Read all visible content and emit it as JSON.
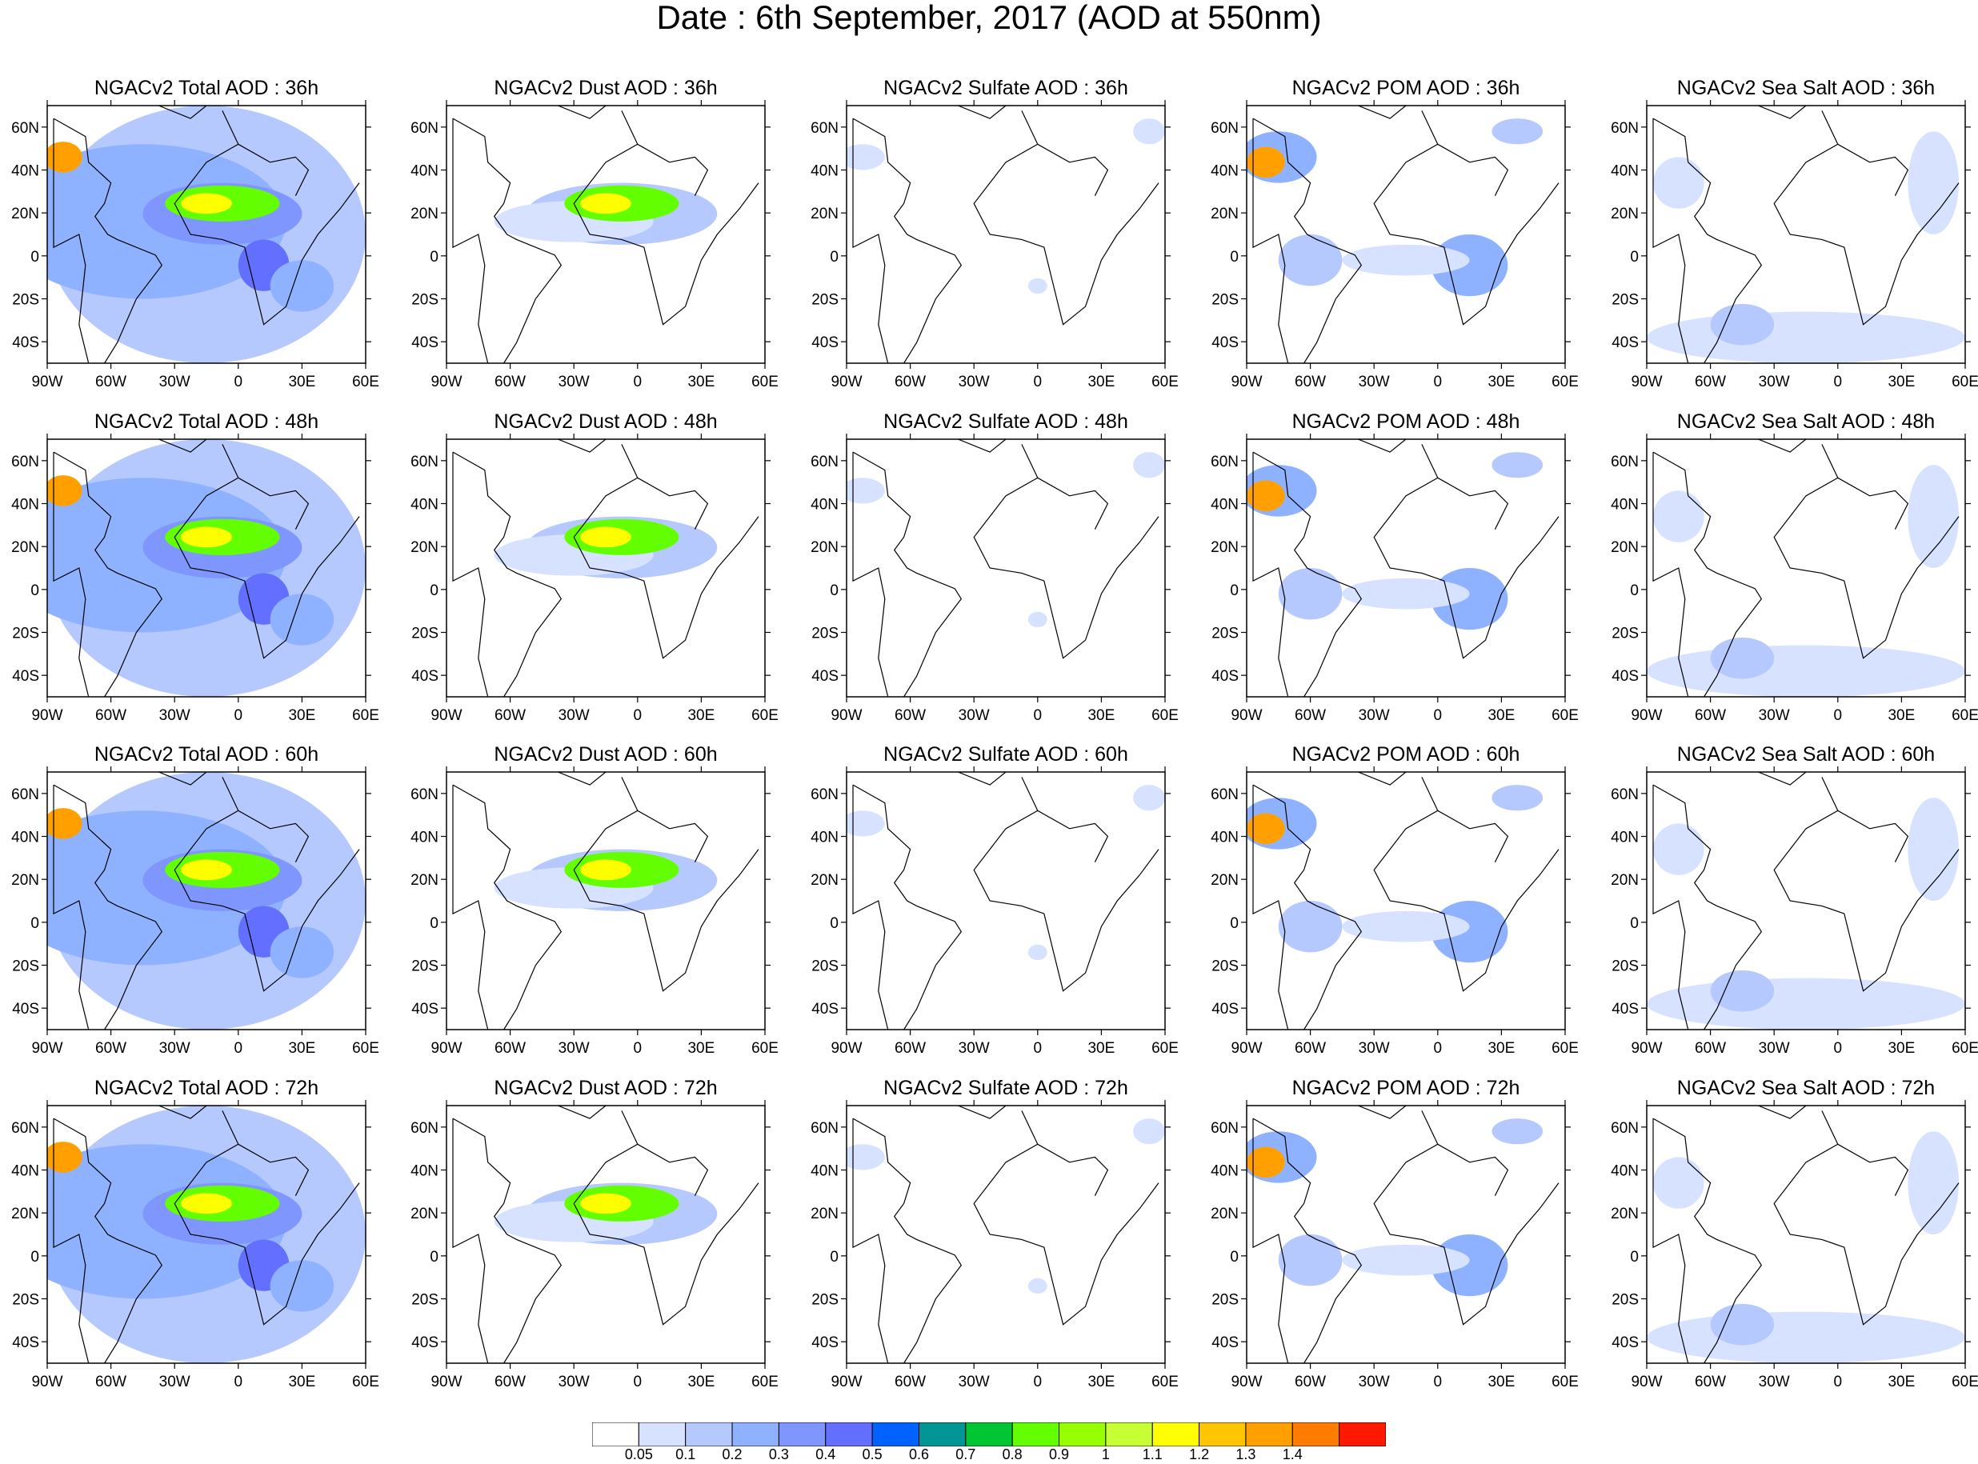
{
  "title": "Date : 6th September, 2017 (AOD at 550nm)",
  "panels": [
    [
      "NGACv2 Total AOD : 36h",
      "NGACv2 Dust AOD : 36h",
      "NGACv2 Sulfate AOD : 36h",
      "NGACv2 POM AOD : 36h",
      "NGACv2 Sea Salt AOD : 36h"
    ],
    [
      "NGACv2 Total AOD : 48h",
      "NGACv2 Dust AOD : 48h",
      "NGACv2 Sulfate AOD : 48h",
      "NGACv2 POM AOD : 48h",
      "NGACv2 Sea Salt AOD : 48h"
    ],
    [
      "NGACv2 Total AOD : 60h",
      "NGACv2 Dust AOD : 60h",
      "NGACv2 Sulfate AOD : 60h",
      "NGACv2 POM AOD : 60h",
      "NGACv2 Sea Salt AOD : 60h"
    ],
    [
      "NGACv2 Total AOD : 72h",
      "NGACv2 Dust AOD : 72h",
      "NGACv2 Sulfate AOD : 72h",
      "NGACv2 POM AOD : 72h",
      "NGACv2 Sea Salt  AOD : 72h"
    ]
  ],
  "axes": {
    "lat_ticks": [
      {
        "value": 60,
        "label": "60N"
      },
      {
        "value": 40,
        "label": "40N"
      },
      {
        "value": 20,
        "label": "20N"
      },
      {
        "value": 0,
        "label": "0"
      },
      {
        "value": -20,
        "label": "20S"
      },
      {
        "value": -40,
        "label": "40S"
      }
    ],
    "lon_ticks": [
      {
        "value": -90,
        "label": "90W"
      },
      {
        "value": -60,
        "label": "60W"
      },
      {
        "value": -30,
        "label": "30W"
      },
      {
        "value": 0,
        "label": "0"
      },
      {
        "value": 30,
        "label": "30E"
      },
      {
        "value": 60,
        "label": "60E"
      }
    ],
    "lon_range": [
      -90,
      60
    ],
    "lat_range": [
      -50,
      70
    ]
  },
  "colorbar": {
    "colors": [
      "#ffffff",
      "#d6e2ff",
      "#b5c9ff",
      "#8eb2ff",
      "#7f96ff",
      "#6370ff",
      "#0063ff",
      "#009696",
      "#00c633",
      "#63ff00",
      "#96ff00",
      "#c6ff33",
      "#ffff00",
      "#ffc600",
      "#ffa000",
      "#ff7c00",
      "#ff1900"
    ],
    "labels": [
      "0.05",
      "0.1",
      "0.2",
      "0.3",
      "0.4",
      "0.5",
      "0.6",
      "0.7",
      "0.8",
      "0.9",
      "1",
      "1.1",
      "1.2",
      "1.3",
      "1.4"
    ]
  }
}
